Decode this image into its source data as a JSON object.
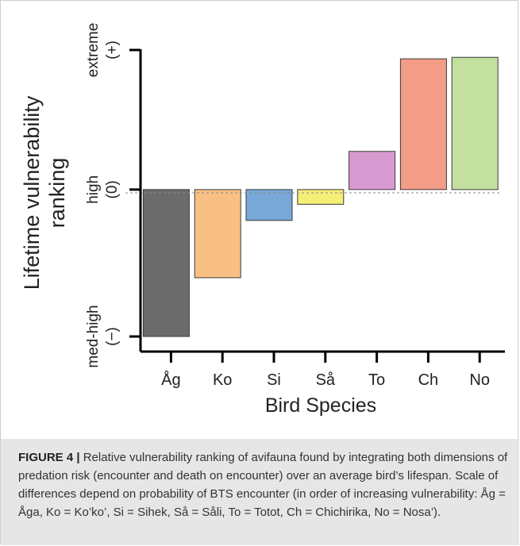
{
  "chart_data": {
    "type": "bar",
    "categories": [
      "Åg",
      "Ko",
      "Si",
      "Så",
      "To",
      "Ch",
      "No"
    ],
    "values": [
      -1.0,
      -0.6,
      -0.21,
      -0.1,
      0.26,
      0.89,
      0.9
    ],
    "colors": [
      "#6b6b6b",
      "#f9c084",
      "#77a8d8",
      "#f5ee77",
      "#d79ad0",
      "#f39c86",
      "#c3e0a0"
    ],
    "ylim": [
      -1.0,
      0.95
    ],
    "y_tick_values": [
      -1.0,
      0.0,
      0.95
    ],
    "y_tick_labels": [
      {
        "line1": "med-high",
        "line2": "(−)"
      },
      {
        "line1": "high",
        "line2": "(0)"
      },
      {
        "line1": "extreme",
        "line2": "(+)"
      }
    ],
    "xlabel": "Bird Species",
    "ylabel_line1": "Lifetime vulnerability",
    "ylabel_line2": "ranking",
    "grid": false,
    "zero_line": "dashed"
  },
  "caption": {
    "label": "FIGURE 4 |",
    "text": " Relative vulnerability ranking of avifauna found by integrating both dimensions of predation risk (encounter and death on encounter) over an average bird’s lifespan. Scale of differences depend on probability of BTS encounter (in order of increasing vulnerability: Åg = Åga, Ko = Ko’ko’, Si = Sihek, Så = Såli, To = Totot, Ch = Chichirika, No = Nosa’)."
  }
}
